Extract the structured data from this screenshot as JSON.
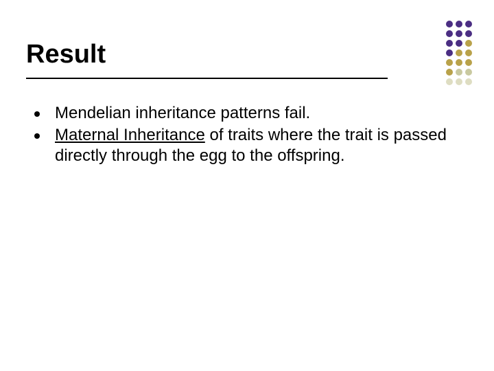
{
  "slide": {
    "title": "Result",
    "title_fontsize": 38,
    "title_color": "#000000",
    "rule_color": "#000000",
    "background_color": "#ffffff",
    "bullets": [
      {
        "plain": "Mendelian inheritance patterns fail."
      },
      {
        "underlined": "Maternal Inheritance",
        "rest": " of traits where the trait is passed directly through the egg to the offspring."
      }
    ],
    "bullet_fontsize": 24,
    "bullet_color": "#000000",
    "bullet_marker_color": "#000000"
  },
  "decoration": {
    "type": "dot-grid",
    "columns": 3,
    "dot_size": 10,
    "gap": 4,
    "colors": [
      "#4b2e83",
      "#4b2e83",
      "#4b2e83",
      "#4b2e83",
      "#4b2e83",
      "#4b2e83",
      "#4b2e83",
      "#4b2e83",
      "#b9a24a",
      "#4b2e83",
      "#b9a24a",
      "#b9a24a",
      "#b9a24a",
      "#b9a24a",
      "#b9a24a",
      "#b9a24a",
      "#c9c9a0",
      "#c9c9a0",
      "#deddc2",
      "#deddc2",
      "#deddc2"
    ]
  }
}
